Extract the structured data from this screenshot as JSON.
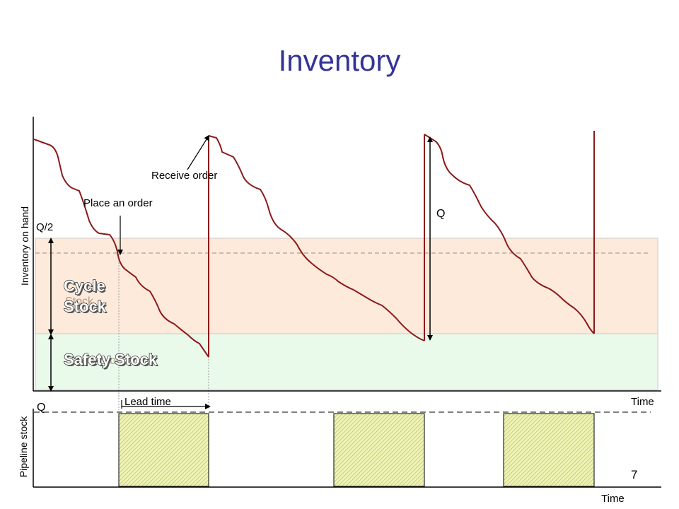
{
  "slide": {
    "title": "Inventory",
    "page_number": "7"
  },
  "top_chart": {
    "y_axis_label": "Inventory on hand",
    "x_axis_label": "Time",
    "annotations": {
      "receive_order": "Receive order",
      "place_order": "Place an order",
      "q": "Q",
      "q_half": "Q/2"
    },
    "bands": {
      "cycle_stock_line1": "Cycle",
      "cycle_stock_line2": "Stock",
      "cycle_stock_shadow": "Stock",
      "safety_stock": "Safety Stock",
      "safety_stock_shadow": "Stock"
    },
    "colors": {
      "inventory_line": "#8b1a1a",
      "cycle_band": "#fdeadb",
      "safety_band": "#eafaea",
      "title": "#333399"
    }
  },
  "bottom_chart": {
    "y_axis_label": "Pipeline stock",
    "x_axis_label": "Time",
    "lead_time_label": "Lead time",
    "q_label": "Q",
    "fill_color": "#e9edb0"
  }
}
